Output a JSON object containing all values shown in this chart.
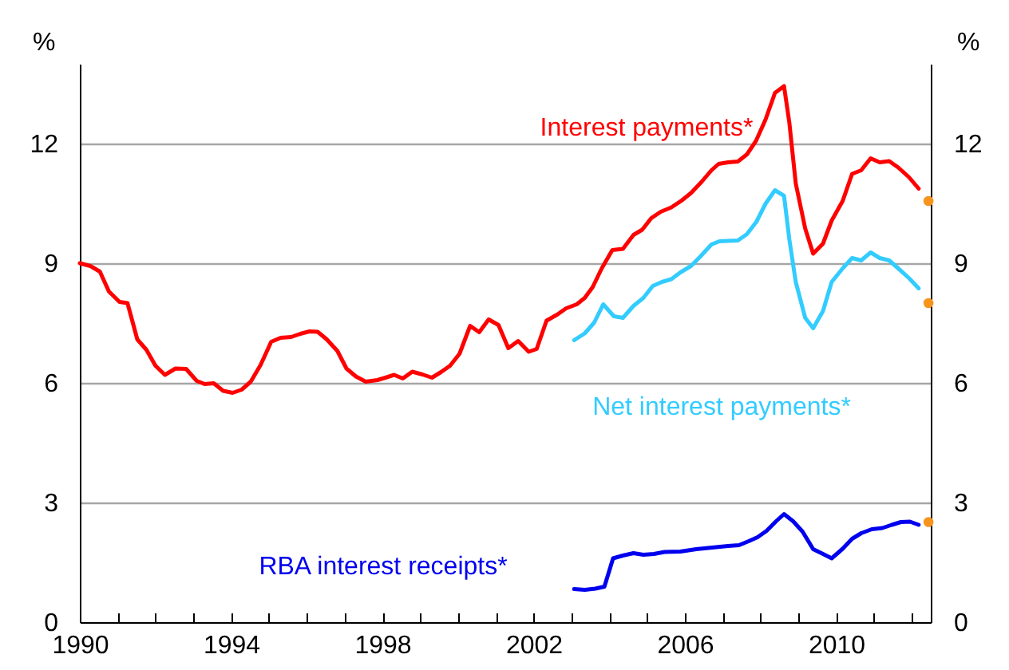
{
  "chart_data": {
    "type": "line",
    "ylabel": "%",
    "y2label": "%",
    "xlim": [
      1990,
      2012.5
    ],
    "ylim": [
      0,
      14
    ],
    "y2lim": [
      0,
      14
    ],
    "xticks": [
      1990,
      {
        "value": 1991,
        "label": null
      },
      {
        "value": 1992,
        "label": null
      },
      {
        "value": 1993,
        "label": null
      },
      1994,
      {
        "value": 1995,
        "label": null
      },
      {
        "value": 1996,
        "label": null
      },
      {
        "value": 1997,
        "label": null
      },
      1998,
      {
        "value": 1999,
        "label": null
      },
      {
        "value": 2000,
        "label": null
      },
      {
        "value": 2001,
        "label": null
      },
      2002,
      {
        "value": 2003,
        "label": null
      },
      {
        "value": 2004,
        "label": null
      },
      {
        "value": 2005,
        "label": null
      },
      2006,
      {
        "value": 2007,
        "label": null
      },
      {
        "value": 2008,
        "label": null
      },
      {
        "value": 2009,
        "label": null
      },
      2010,
      {
        "value": 2011,
        "label": null
      },
      {
        "value": 2012,
        "label": null
      }
    ],
    "yticks": [
      0,
      3,
      6,
      9,
      12
    ],
    "y2ticks": [
      0,
      3,
      6,
      9,
      12
    ],
    "grid": "y",
    "legend": false,
    "series": [
      {
        "name": "Interest payments*",
        "color": "#ff0000",
        "x": [
          1990,
          1990.28,
          1990.53,
          1990.77,
          1991.05,
          1991.26,
          1991.52,
          1991.76,
          1992,
          1992.25,
          1992.53,
          1992.81,
          1993.09,
          1993.3,
          1993.54,
          1993.79,
          1994.04,
          1994.28,
          1994.52,
          1994.78,
          1995.06,
          1995.31,
          1995.59,
          1995.83,
          1996.07,
          1996.29,
          1996.53,
          1996.81,
          1997.05,
          1997.3,
          1997.56,
          1997.87,
          1998.08,
          1998.31,
          1998.54,
          1998.79,
          1999.06,
          1999.31,
          1999.55,
          1999.79,
          2000.04,
          2000.32,
          2000.56,
          2000.81,
          2001.07,
          2001.33,
          2001.59,
          2001.87,
          2002.08,
          2002.34,
          2002.62,
          2002.86,
          2003.14,
          2003.35,
          2003.56,
          2003.8,
          2004.08,
          2004.36,
          2004.64,
          2004.87,
          2005.11,
          2005.36,
          2005.64,
          2005.91,
          2006.16,
          2006.44,
          2006.7,
          2006.89,
          2007.14,
          2007.4,
          2007.64,
          2007.88,
          2008.13,
          2008.38,
          2008.62,
          2008.76,
          2008.93,
          2009.18,
          2009.39,
          2009.65,
          2009.88,
          2010.17,
          2010.42,
          2010.66,
          2010.91,
          2011.15,
          2011.4,
          2011.64,
          2011.92,
          2012.18
        ],
        "values": [
          9.0,
          8.93,
          8.79,
          8.29,
          8.03,
          8.0,
          7.09,
          6.83,
          6.43,
          6.2,
          6.36,
          6.35,
          6.05,
          5.97,
          5.99,
          5.8,
          5.75,
          5.83,
          6.03,
          6.45,
          7.03,
          7.13,
          7.15,
          7.23,
          7.29,
          7.28,
          7.09,
          6.8,
          6.36,
          6.16,
          6.03,
          6.07,
          6.13,
          6.2,
          6.11,
          6.28,
          6.21,
          6.13,
          6.27,
          6.43,
          6.73,
          7.43,
          7.27,
          7.59,
          7.45,
          6.87,
          7.05,
          6.78,
          6.85,
          7.56,
          7.71,
          7.87,
          7.97,
          8.13,
          8.4,
          8.87,
          9.33,
          9.36,
          9.71,
          9.84,
          10.13,
          10.29,
          10.4,
          10.57,
          10.76,
          11.04,
          11.33,
          11.49,
          11.53,
          11.55,
          11.73,
          12.07,
          12.6,
          13.27,
          13.44,
          12.53,
          11.0,
          9.87,
          9.24,
          9.49,
          10.07,
          10.56,
          11.24,
          11.33,
          11.63,
          11.53,
          11.56,
          11.4,
          11.16,
          10.87
        ]
      },
      {
        "name": "Net interest payments*",
        "color": "#33ccff",
        "x": [
          2003.07,
          2003.35,
          2003.6,
          2003.84,
          2004.12,
          2004.36,
          2004.64,
          2004.9,
          2005.15,
          2005.39,
          2005.64,
          2005.88,
          2006.16,
          2006.41,
          2006.7,
          2006.91,
          2007.14,
          2007.4,
          2007.64,
          2007.89,
          2008.13,
          2008.38,
          2008.62,
          2008.76,
          2008.93,
          2009.18,
          2009.39,
          2009.65,
          2009.88,
          2010.17,
          2010.42,
          2010.66,
          2010.91,
          2011.15,
          2011.4,
          2011.64,
          2011.92,
          2012.18
        ],
        "values": [
          7.07,
          7.24,
          7.51,
          7.97,
          7.67,
          7.63,
          7.93,
          8.13,
          8.43,
          8.53,
          8.6,
          8.77,
          8.93,
          9.17,
          9.47,
          9.55,
          9.56,
          9.57,
          9.73,
          10.04,
          10.49,
          10.83,
          10.69,
          9.6,
          8.53,
          7.63,
          7.37,
          7.8,
          8.53,
          8.87,
          9.13,
          9.07,
          9.27,
          9.13,
          9.07,
          8.87,
          8.63,
          8.37
        ]
      },
      {
        "name": "RBA interest receipts*",
        "color": "#0000ee",
        "x": [
          2003.07,
          2003.35,
          2003.63,
          2003.87,
          2004.1,
          2004.36,
          2004.64,
          2004.9,
          2005.18,
          2005.46,
          2005.88,
          2006.3,
          2006.72,
          2007.14,
          2007.43,
          2007.71,
          2007.92,
          2008.16,
          2008.41,
          2008.62,
          2008.86,
          2009.11,
          2009.39,
          2009.65,
          2009.88,
          2010.17,
          2010.42,
          2010.66,
          2010.94,
          2011.22,
          2011.47,
          2011.71,
          2011.95,
          2012.18
        ],
        "values": [
          0.83,
          0.81,
          0.84,
          0.89,
          1.6,
          1.67,
          1.73,
          1.69,
          1.71,
          1.76,
          1.77,
          1.83,
          1.87,
          1.91,
          1.93,
          2.04,
          2.13,
          2.29,
          2.53,
          2.71,
          2.53,
          2.27,
          1.83,
          1.71,
          1.6,
          1.84,
          2.09,
          2.23,
          2.33,
          2.36,
          2.44,
          2.51,
          2.52,
          2.44
        ]
      },
      {
        "type": "scatter",
        "color": "#f7941d",
        "x": [
          2012.44,
          2012.44,
          2012.44
        ],
        "values": [
          10.56,
          8.0,
          2.51
        ]
      }
    ]
  }
}
